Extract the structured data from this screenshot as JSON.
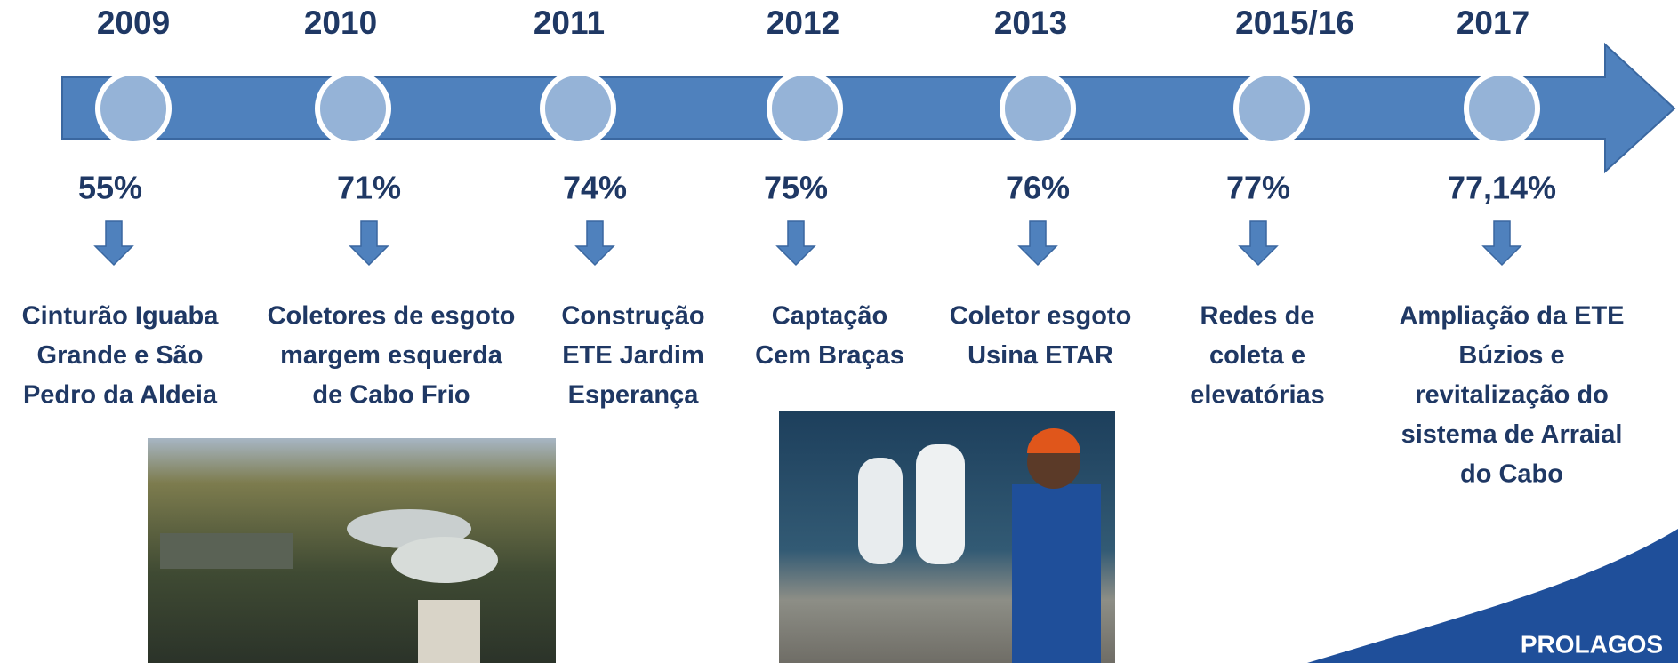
{
  "timeline": {
    "events": [
      {
        "year": "2009",
        "percent": "55%",
        "description": [
          "Cinturão Iguaba",
          "Grande e São",
          "Pedro da Aldeia"
        ]
      },
      {
        "year": "2010",
        "percent": "71%",
        "description": [
          "Coletores de esgoto",
          "margem esquerda",
          "de Cabo Frio"
        ]
      },
      {
        "year": "2011",
        "percent": "74%",
        "description": [
          "Construção",
          "ETE Jardim",
          "Esperança"
        ]
      },
      {
        "year": "2012",
        "percent": "75%",
        "description": [
          "Captação",
          "Cem Braças"
        ]
      },
      {
        "year": "2013",
        "percent": "76%",
        "description": [
          "Coletor esgoto",
          "Usina ETAR"
        ]
      },
      {
        "year": "2015/16",
        "percent": "77%",
        "description": [
          "Redes de",
          "coleta e",
          "elevatórias"
        ]
      },
      {
        "year": "2017",
        "percent": "77,14%",
        "description": [
          "Ampliação da ETE",
          "Búzios e",
          "revitalização do",
          "sistema de Arraial",
          "do Cabo"
        ]
      }
    ]
  },
  "logo": {
    "text": "PROLAGOS"
  }
}
